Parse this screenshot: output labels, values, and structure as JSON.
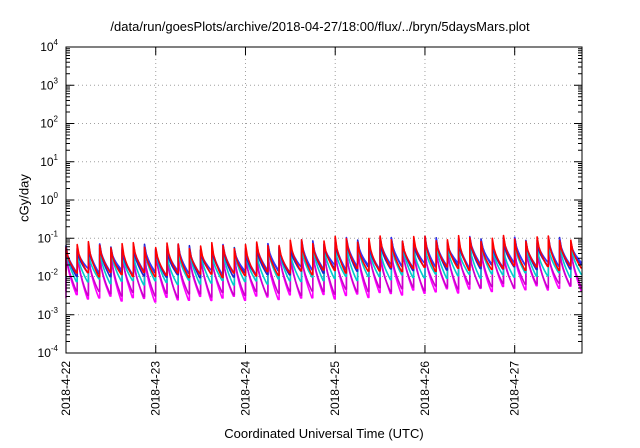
{
  "chart_data": {
    "type": "line",
    "title": "/data/run/goesPlots/archive/2018-04-27/18:00/flux/../bryn/5daysMars.plot",
    "xlabel": "Coordinated Universal Time (UTC)",
    "ylabel": "cGy/day",
    "y_scale": "log",
    "ylim": [
      0.0001,
      10000
    ],
    "y_ticks": [
      {
        "base": "10",
        "exp": "-4",
        "value": 0.0001
      },
      {
        "base": "10",
        "exp": "-3",
        "value": 0.001
      },
      {
        "base": "10",
        "exp": "-2",
        "value": 0.01
      },
      {
        "base": "10",
        "exp": "-1",
        "value": 0.1
      },
      {
        "base": "10",
        "exp": "0",
        "value": 1
      },
      {
        "base": "10",
        "exp": "1",
        "value": 10
      },
      {
        "base": "10",
        "exp": "2",
        "value": 100
      },
      {
        "base": "10",
        "exp": "3",
        "value": 1000
      },
      {
        "base": "10",
        "exp": "4",
        "value": 10000
      }
    ],
    "xlim": [
      "2018-04-22T00:00",
      "2018-04-27T18:00"
    ],
    "x_ticks": [
      "2018-4-22",
      "2018-4-23",
      "2018-4-24",
      "2018-4-25",
      "2018-4-26",
      "2018-4-27"
    ],
    "grid": true,
    "legend": "none",
    "cycles_per_day": 8,
    "series": [
      {
        "color": "#ff00ff",
        "peak": [
          0.045,
          0.045,
          0.04,
          0.06,
          0.06,
          0.055
        ],
        "trough": [
          0.003,
          0.0025,
          0.0028,
          0.003,
          0.004,
          0.005
        ]
      },
      {
        "color": "#cc00cc",
        "peak": [
          0.04,
          0.04,
          0.035,
          0.05,
          0.05,
          0.05
        ],
        "trough": [
          0.004,
          0.0032,
          0.0035,
          0.004,
          0.005,
          0.006
        ]
      },
      {
        "color": "#00cccc",
        "peak": [
          0.05,
          0.05,
          0.05,
          0.07,
          0.07,
          0.07
        ],
        "trough": [
          0.008,
          0.007,
          0.007,
          0.009,
          0.01,
          0.011
        ]
      },
      {
        "color": "#2222cc",
        "peak": [
          0.06,
          0.06,
          0.055,
          0.085,
          0.09,
          0.09
        ],
        "trough": [
          0.012,
          0.011,
          0.011,
          0.015,
          0.017,
          0.018
        ]
      },
      {
        "color": "#3333ff",
        "peak": [
          0.065,
          0.06,
          0.06,
          0.09,
          0.095,
          0.095
        ],
        "trough": [
          0.015,
          0.013,
          0.013,
          0.018,
          0.02,
          0.021
        ]
      },
      {
        "color": "#ff0000",
        "peak": [
          0.07,
          0.065,
          0.065,
          0.095,
          0.1,
          0.1
        ],
        "trough": [
          0.012,
          0.011,
          0.011,
          0.014,
          0.016,
          0.017
        ]
      }
    ]
  }
}
